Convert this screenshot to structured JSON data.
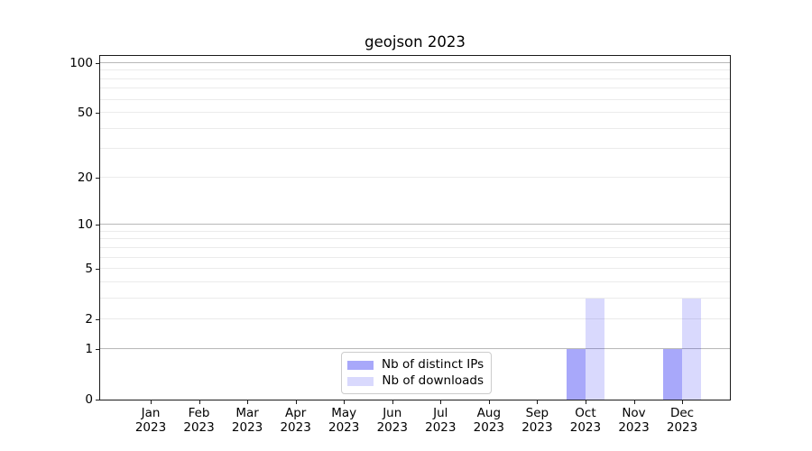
{
  "title": "geojson 2023",
  "chart_data": {
    "type": "bar",
    "title": "geojson 2023",
    "categories": [
      "Jan",
      "Feb",
      "Mar",
      "Apr",
      "May",
      "Jun",
      "Jul",
      "Aug",
      "Sep",
      "Oct",
      "Nov",
      "Dec"
    ],
    "x_tick_second_line": "2023",
    "series": [
      {
        "name": "Nb of distinct IPs",
        "color": "rgba(0,0,240,0.34)",
        "values": [
          0,
          0,
          0,
          0,
          0,
          0,
          0,
          0,
          0,
          1,
          0,
          1
        ]
      },
      {
        "name": "Nb of downloads",
        "color": "rgba(0,0,240,0.15)",
        "values": [
          0,
          0,
          0,
          0,
          0,
          0,
          0,
          0,
          0,
          3,
          0,
          3
        ]
      }
    ],
    "xlabel": "",
    "ylabel": "",
    "y_scale": "log1p",
    "ylim": [
      0,
      110.5
    ],
    "y_ticks": [
      0,
      1,
      2,
      5,
      10,
      20,
      50,
      100
    ],
    "grid": {
      "major_values": [
        1,
        10,
        100
      ],
      "minor_values": [
        2,
        3,
        4,
        5,
        6,
        7,
        8,
        9,
        20,
        30,
        40,
        50,
        60,
        70,
        80,
        90
      ]
    },
    "legend_position": "lower center",
    "colors": {
      "grid_major": "#b8b8b8",
      "grid_minor": "#ebebeb",
      "spine": "#1a1a1a",
      "text": "#000000",
      "legend_border": "#cccccc",
      "background": "#ffffff"
    }
  }
}
